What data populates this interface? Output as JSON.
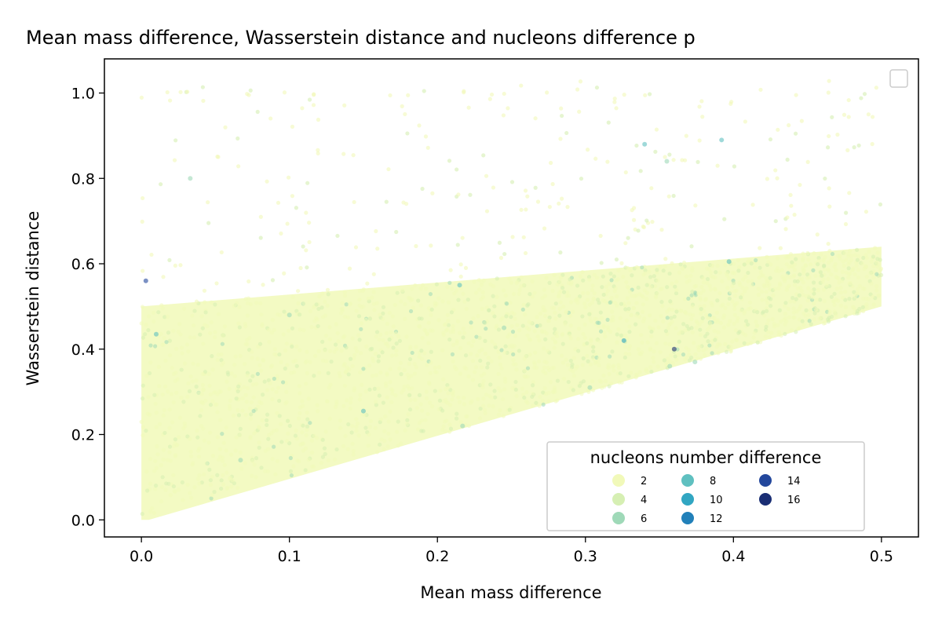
{
  "chart_data": {
    "type": "scatter",
    "title": "Mean mass difference, Wasserstein distance and nucleons difference p",
    "xlabel": "Mean mass difference",
    "ylabel": "Wasserstein distance",
    "xlim": [
      -0.025,
      0.525
    ],
    "ylim": [
      -0.04,
      1.08
    ],
    "x_ticks": [
      "0.0",
      "0.1",
      "0.2",
      "0.3",
      "0.4",
      "0.5"
    ],
    "y_ticks": [
      "0.0",
      "0.2",
      "0.4",
      "0.6",
      "0.8",
      "1.0"
    ],
    "grid": false,
    "legend": {
      "title": "nucleons number difference",
      "placement": "lower-right",
      "entries": [
        {
          "label": "2",
          "color": "#f1f9b9"
        },
        {
          "label": "4",
          "color": "#d6efb3"
        },
        {
          "label": "6",
          "color": "#9fd9b8"
        },
        {
          "label": "8",
          "color": "#5fc0c0"
        },
        {
          "label": "10",
          "color": "#31a6c2"
        },
        {
          "label": "12",
          "color": "#2180b9"
        },
        {
          "label": "14",
          "color": "#23479c"
        },
        {
          "label": "16",
          "color": "#1a2e74"
        }
      ]
    },
    "empty_legend_box": {
      "placement": "upper-right"
    },
    "dense_region": {
      "description_polygon": [
        [
          0.0,
          0.0
        ],
        [
          0.0,
          0.5
        ],
        [
          0.5,
          0.64
        ],
        [
          0.5,
          0.5
        ],
        [
          0.005,
          0.0
        ]
      ],
      "dominant_color": "#f1f9b9"
    },
    "highlighted_points": [
      {
        "x": 0.003,
        "y": 0.56,
        "nucleons": 14
      },
      {
        "x": 0.36,
        "y": 0.4,
        "nucleons": 16
      },
      {
        "x": 0.34,
        "y": 0.88,
        "nucleons": 8
      },
      {
        "x": 0.392,
        "y": 0.89,
        "nucleons": 8
      },
      {
        "x": 0.215,
        "y": 0.55,
        "nucleons": 8
      },
      {
        "x": 0.397,
        "y": 0.605,
        "nucleons": 8
      },
      {
        "x": 0.033,
        "y": 0.8,
        "nucleons": 6
      },
      {
        "x": 0.355,
        "y": 0.84,
        "nucleons": 6
      },
      {
        "x": 0.01,
        "y": 0.435,
        "nucleons": 8
      },
      {
        "x": 0.245,
        "y": 0.45,
        "nucleons": 6
      },
      {
        "x": 0.374,
        "y": 0.37,
        "nucleons": 6
      },
      {
        "x": 0.15,
        "y": 0.255,
        "nucleons": 8
      },
      {
        "x": 0.326,
        "y": 0.42,
        "nucleons": 10
      },
      {
        "x": 0.067,
        "y": 0.14,
        "nucleons": 6
      },
      {
        "x": 0.1,
        "y": 0.48,
        "nucleons": 6
      },
      {
        "x": 0.217,
        "y": 0.22,
        "nucleons": 6
      },
      {
        "x": 0.303,
        "y": 0.31,
        "nucleons": 6
      },
      {
        "x": 0.357,
        "y": 0.36,
        "nucleons": 6
      }
    ]
  }
}
